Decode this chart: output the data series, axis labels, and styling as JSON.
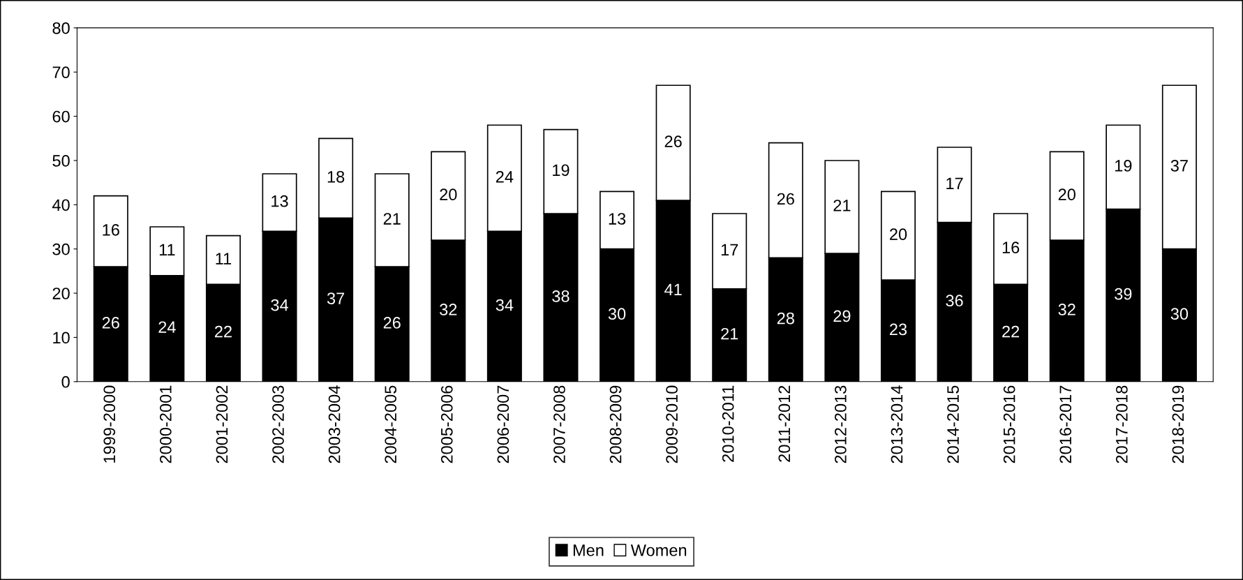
{
  "chart_data": {
    "type": "bar",
    "stacked": true,
    "categories": [
      "1999-2000",
      "2000-2001",
      "2001-2002",
      "2002-2003",
      "2003-2004",
      "2004-2005",
      "2005-2006",
      "2006-2007",
      "2007-2008",
      "2008-2009",
      "2009-2010",
      "2010-2011",
      "2011-2012",
      "2012-2013",
      "2013-2014",
      "2014-2015",
      "2015-2016",
      "2016-2017",
      "2017-2018",
      "2018-2019"
    ],
    "series": [
      {
        "name": "Men",
        "color": "#000000",
        "values": [
          26,
          24,
          22,
          34,
          37,
          26,
          32,
          34,
          38,
          30,
          41,
          21,
          28,
          29,
          23,
          36,
          22,
          32,
          39,
          30
        ]
      },
      {
        "name": "Women",
        "color": "#ffffff",
        "values": [
          16,
          11,
          11,
          13,
          18,
          21,
          20,
          24,
          19,
          13,
          26,
          17,
          26,
          21,
          20,
          17,
          16,
          20,
          19,
          37
        ]
      }
    ],
    "ylim": [
      0,
      80
    ],
    "yticks": [
      0,
      10,
      20,
      30,
      40,
      50,
      60,
      70,
      80
    ],
    "grid": false,
    "legend": "bottom",
    "data_labels": true
  }
}
